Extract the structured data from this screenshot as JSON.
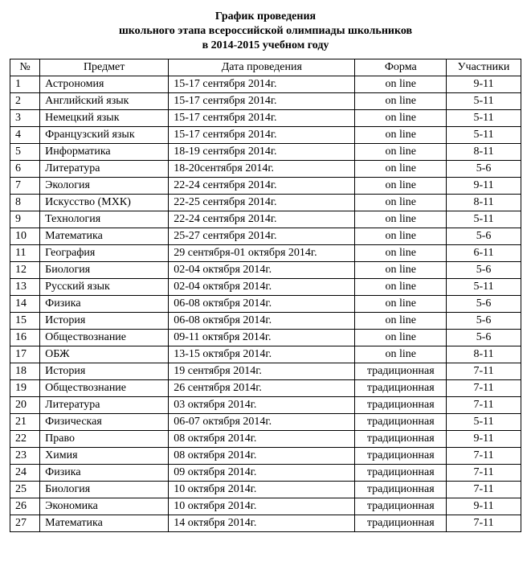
{
  "title": {
    "line1": "График проведения",
    "line2": "школьного этапа всероссийской олимпиады школьников",
    "line3": "в 2014-2015 учебном году"
  },
  "columns": {
    "num": "№",
    "subject": "Предмет",
    "date": "Дата проведения",
    "form": "Форма",
    "participants": "Участники"
  },
  "rows": [
    {
      "num": "1",
      "subject": "Астрономия",
      "date": "15-17 сентября 2014г.",
      "form": "on line",
      "participants": "9-11"
    },
    {
      "num": "2",
      "subject": "Английский язык",
      "date": "15-17 сентября 2014г.",
      "form": "on line",
      "participants": "5-11"
    },
    {
      "num": "3",
      "subject": "Немецкий язык",
      "date": "15-17 сентября 2014г.",
      "form": "on line",
      "participants": "5-11"
    },
    {
      "num": "4",
      "subject": "Французский язык",
      "date": "15-17 сентября 2014г.",
      "form": "on line",
      "participants": "5-11"
    },
    {
      "num": "5",
      "subject": "Информатика",
      "date": "18-19 сентября 2014г.",
      "form": "on line",
      "participants": "8-11"
    },
    {
      "num": "6",
      "subject": "Литература",
      "date": "18-20сентября 2014г.",
      "form": "on line",
      "participants": "5-6"
    },
    {
      "num": "7",
      "subject": "Экология",
      "date": "22-24 сентября 2014г.",
      "form": "on line",
      "participants": "9-11"
    },
    {
      "num": "8",
      "subject": "Искусство (МХК)",
      "date": "22-25 сентября 2014г.",
      "form": "on line",
      "participants": "8-11"
    },
    {
      "num": "9",
      "subject": "Технология",
      "date": "22-24 сентября 2014г.",
      "form": "on line",
      "participants": "5-11"
    },
    {
      "num": "10",
      "subject": "Математика",
      "date": "25-27 сентября 2014г.",
      "form": "on line",
      "participants": "5-6"
    },
    {
      "num": "11",
      "subject": "География",
      "date": "29 сентября-01 октября 2014г.",
      "form": "on line",
      "participants": "6-11"
    },
    {
      "num": "12",
      "subject": "Биология",
      "date": "02-04 октября 2014г.",
      "form": "on line",
      "participants": "5-6"
    },
    {
      "num": "13",
      "subject": "Русский язык",
      "date": "02-04 октября 2014г.",
      "form": "on line",
      "participants": "5-11"
    },
    {
      "num": "14",
      "subject": "Физика",
      "date": "06-08 октября 2014г.",
      "form": "on line",
      "participants": "5-6"
    },
    {
      "num": "15",
      "subject": "История",
      "date": "06-08 октября 2014г.",
      "form": "on line",
      "participants": "5-6"
    },
    {
      "num": "16",
      "subject": "Обществознание",
      "date": "09-11 октября 2014г.",
      "form": "on line",
      "participants": "5-6"
    },
    {
      "num": "17",
      "subject": "ОБЖ",
      "date": "13-15 октября 2014г.",
      "form": "on line",
      "participants": "8-11"
    },
    {
      "num": "18",
      "subject": "История",
      "date": "19 сентября 2014г.",
      "form": "традиционная",
      "participants": "7-11"
    },
    {
      "num": "19",
      "subject": "Обществознание",
      "date": "26 сентября 2014г.",
      "form": "традиционная",
      "participants": "7-11"
    },
    {
      "num": "20",
      "subject": "Литература",
      "date": "03 октября 2014г.",
      "form": "традиционная",
      "participants": "7-11"
    },
    {
      "num": "21",
      "subject": "Физическая",
      "date": "06-07 октября 2014г.",
      "form": "традиционная",
      "participants": "5-11"
    },
    {
      "num": "22",
      "subject": "Право",
      "date": "08 октября 2014г.",
      "form": "традиционная",
      "participants": "9-11"
    },
    {
      "num": "23",
      "subject": "Химия",
      "date": "08 октября 2014г.",
      "form": "традиционная",
      "participants": "7-11"
    },
    {
      "num": "24",
      "subject": "Физика",
      "date": "09 октября 2014г.",
      "form": "традиционная",
      "participants": "7-11"
    },
    {
      "num": "25",
      "subject": "Биология",
      "date": "10 октября 2014г.",
      "form": "традиционная",
      "participants": "7-11"
    },
    {
      "num": "26",
      "subject": "Экономика",
      "date": "10 октября 2014г.",
      "form": "традиционная",
      "participants": "9-11"
    },
    {
      "num": "27",
      "subject": "Математика",
      "date": "14 октября 2014г.",
      "form": "традиционная",
      "participants": "7-11"
    }
  ]
}
